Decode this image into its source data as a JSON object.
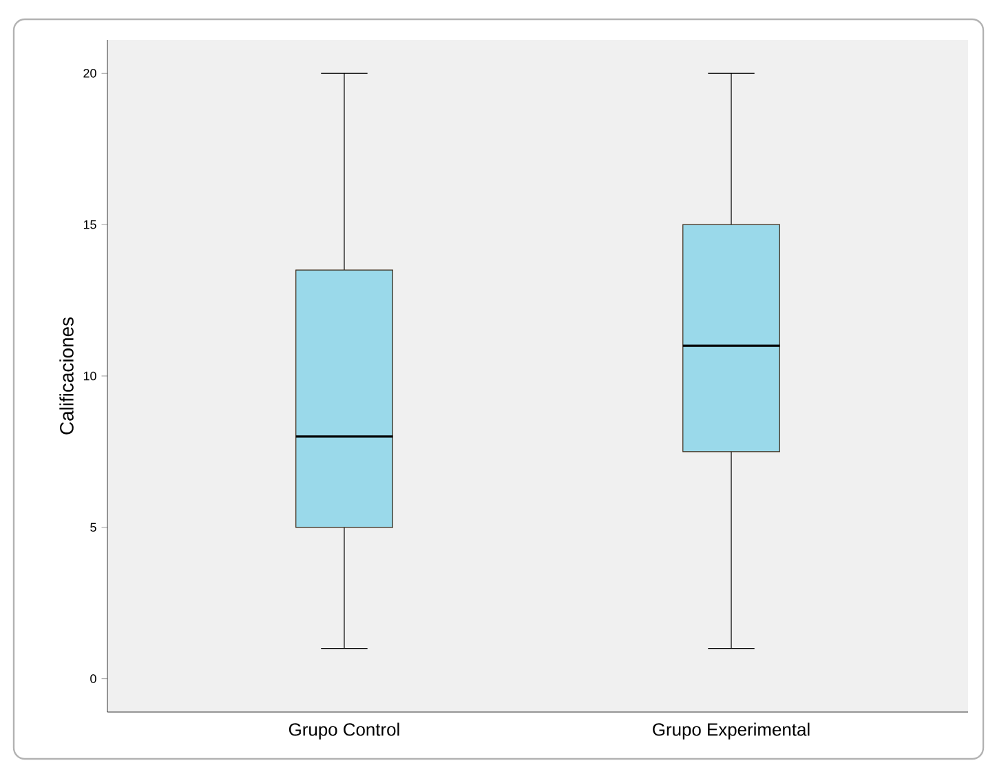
{
  "chart_data": {
    "type": "box",
    "ylabel": "Calificaciones",
    "categories": [
      "Grupo Control",
      "Grupo Experimental"
    ],
    "boxes": [
      {
        "low": 1,
        "q1": 5,
        "median": 8,
        "q3": 13.5,
        "high": 20
      },
      {
        "low": 1,
        "q1": 7.5,
        "median": 11,
        "q3": 15,
        "high": 20
      }
    ],
    "color": "#9ad9ea",
    "ylim": [
      -1.1,
      21.1
    ],
    "yticks": [
      0,
      5,
      10,
      15,
      20
    ]
  }
}
